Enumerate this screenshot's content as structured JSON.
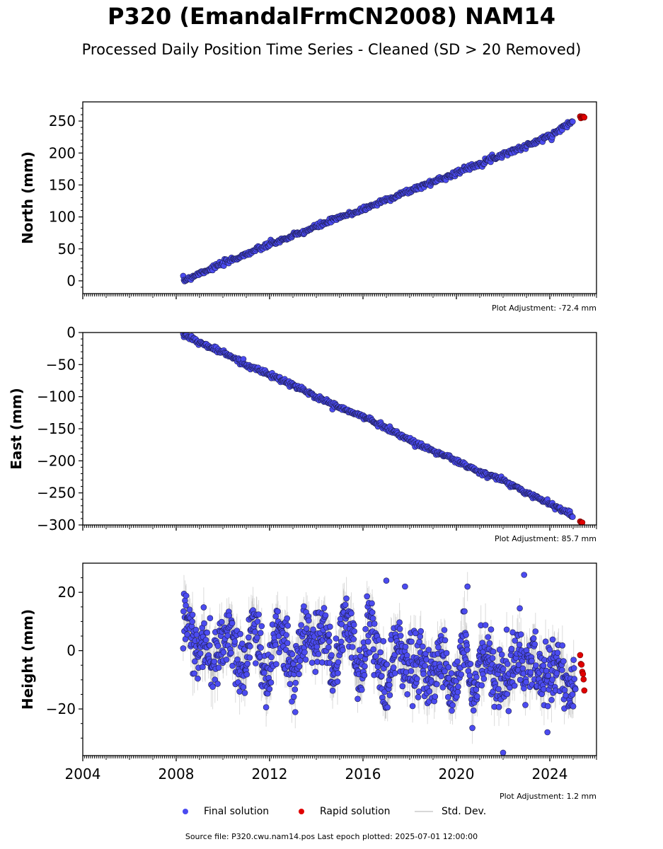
{
  "title": "P320 (EmandalFrmCN2008) NAM14",
  "subtitle": "Processed Daily Position Time Series - Cleaned (SD > 20 Removed)",
  "legend": {
    "final": "Final solution",
    "rapid": "Rapid solution",
    "std": "Std. Dev."
  },
  "source_note": "Source file: P320.cwu.nam14.pos  Last epoch plotted: 2025-07-01 12:00:00",
  "colors": {
    "final": "#4b4bf0",
    "final_edge": "#1e1e50",
    "rapid": "#e00000",
    "std": "#999999"
  },
  "chart_data": [
    {
      "type": "scatter",
      "ylabel": "North (mm)",
      "adjustment": "Plot Adjustment: -72.4 mm",
      "xlim": [
        2004.0,
        2026.0
      ],
      "ylim": [
        -20,
        280
      ],
      "yticks": [
        0,
        50,
        100,
        150,
        200,
        250
      ],
      "ytick_labels": [
        "0",
        "50",
        "100",
        "150",
        "200",
        "250"
      ],
      "yminor": [
        -10,
        10,
        20,
        30,
        40,
        60,
        70,
        80,
        90,
        110,
        120,
        130,
        140,
        160,
        170,
        180,
        190,
        210,
        220,
        230,
        240,
        260,
        270
      ],
      "show_xlabels": false,
      "series": [
        {
          "name": "Final solution",
          "x": [
            2008.3,
            2009.0,
            2010.0,
            2011.0,
            2012.0,
            2013.0,
            2014.0,
            2015.0,
            2016.0,
            2017.0,
            2018.0,
            2019.0,
            2020.0,
            2021.0,
            2022.0,
            2023.0,
            2024.0,
            2025.0
          ],
          "y": [
            0,
            12,
            27,
            42,
            57,
            70,
            85,
            99,
            112,
            127,
            141,
            155,
            169,
            184,
            198,
            211,
            227,
            250
          ],
          "noise": 2
        },
        {
          "name": "Rapid solution",
          "x": [
            2025.3,
            2025.4,
            2025.5
          ],
          "y": [
            256,
            257,
            257
          ],
          "noise": 1
        }
      ]
    },
    {
      "type": "scatter",
      "ylabel": "East (mm)",
      "adjustment": "Plot Adjustment: 85.7 mm",
      "xlim": [
        2004.0,
        2026.0
      ],
      "ylim": [
        -300,
        0
      ],
      "yticks": [
        -300,
        -250,
        -200,
        -150,
        -100,
        -50,
        0
      ],
      "ytick_labels": [
        "−300",
        "−250",
        "−200",
        "−150",
        "−100",
        "−50",
        "0"
      ],
      "yminor": [
        -290,
        -280,
        -270,
        -260,
        -240,
        -230,
        -220,
        -210,
        -190,
        -180,
        -170,
        -160,
        -140,
        -130,
        -120,
        -110,
        -90,
        -80,
        -70,
        -60,
        -40,
        -30,
        -20,
        -10
      ],
      "show_xlabels": false,
      "series": [
        {
          "name": "Final solution",
          "x": [
            2008.3,
            2009.0,
            2010.0,
            2011.0,
            2012.0,
            2013.0,
            2014.0,
            2015.0,
            2016.0,
            2017.0,
            2018.0,
            2019.0,
            2020.0,
            2021.0,
            2022.0,
            2023.0,
            2024.0,
            2025.0
          ],
          "y": [
            -1,
            -16,
            -31,
            -50,
            -66,
            -82,
            -100,
            -117,
            -131,
            -148,
            -168,
            -184,
            -200,
            -218,
            -230,
            -250,
            -266,
            -286
          ],
          "noise": 2
        },
        {
          "name": "Rapid solution",
          "x": [
            2025.3,
            2025.4
          ],
          "y": [
            -295,
            -296
          ],
          "noise": 1
        }
      ]
    },
    {
      "type": "scatter",
      "ylabel": "Height (mm)",
      "adjustment": "Plot Adjustment: 1.2 mm",
      "xlim": [
        2004.0,
        2026.0
      ],
      "ylim": [
        -36,
        30
      ],
      "yticks": [
        -20,
        0,
        20
      ],
      "ytick_labels": [
        "−20",
        "0",
        "20"
      ],
      "yminor": [
        -30,
        -25,
        -15,
        -10,
        -5,
        5,
        10,
        15,
        25
      ],
      "xticks": [
        2004,
        2008,
        2012,
        2016,
        2020,
        2024
      ],
      "xtick_labels": [
        "2004",
        "2008",
        "2012",
        "2016",
        "2020",
        "2024"
      ],
      "show_xlabels": true,
      "series": [
        {
          "name": "Final solution",
          "x": [
            2008.3,
            2008.7,
            2009.1,
            2009.5,
            2009.9,
            2010.3,
            2010.7,
            2011.1,
            2011.5,
            2011.9,
            2012.3,
            2012.7,
            2013.1,
            2013.5,
            2013.9,
            2014.3,
            2014.7,
            2015.1,
            2015.5,
            2015.9,
            2016.3,
            2016.7,
            2017.1,
            2017.5,
            2017.9,
            2018.3,
            2018.7,
            2019.1,
            2019.5,
            2019.9,
            2020.3,
            2020.7,
            2021.1,
            2021.5,
            2021.9,
            2022.3,
            2022.7,
            2023.1,
            2023.5,
            2023.9,
            2024.3,
            2024.7,
            2025.1
          ],
          "y": [
            6,
            8,
            3,
            -4,
            8,
            2,
            -6,
            4,
            1,
            -7,
            3,
            6,
            -8,
            2,
            9,
            1,
            -5,
            7,
            3,
            -4,
            6,
            -3,
            -12,
            -2,
            1,
            -10,
            -5,
            -8,
            -6,
            -10,
            -4,
            -12,
            -2,
            -8,
            -4,
            -12,
            0,
            -6,
            -10,
            -4,
            -8,
            -10,
            -8
          ],
          "noise": 5,
          "outliers": [
            [
              2022.9,
              26
            ],
            [
              2017.0,
              24
            ],
            [
              2017.8,
              22
            ],
            [
              2022.0,
              -35
            ],
            [
              2023.9,
              -28
            ]
          ]
        },
        {
          "name": "Rapid solution",
          "x": [
            2025.3,
            2025.35,
            2025.4,
            2025.45,
            2025.5
          ],
          "y": [
            -2,
            -5,
            -8,
            -11,
            -15
          ],
          "noise": 1
        }
      ]
    }
  ]
}
